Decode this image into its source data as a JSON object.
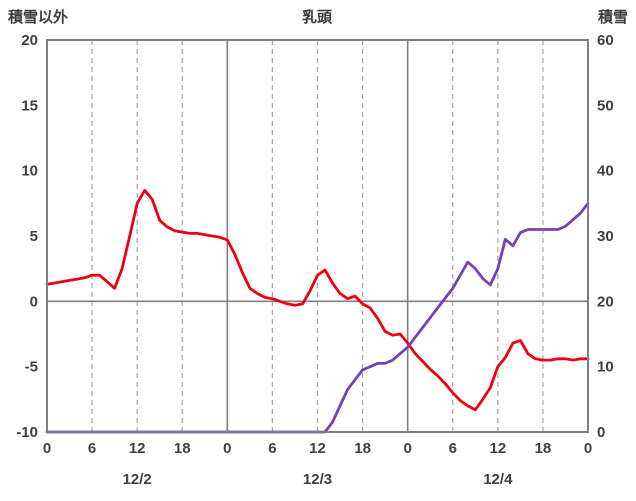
{
  "chart_data": {
    "type": "line",
    "title": "乳頭",
    "x_hours_range": [
      0,
      72
    ],
    "x_tick_hours": [
      0,
      6,
      12,
      18,
      24,
      30,
      36,
      42,
      48,
      54,
      60,
      66,
      72
    ],
    "x_tick_labels": [
      "0",
      "6",
      "12",
      "18",
      "0",
      "6",
      "12",
      "18",
      "0",
      "6",
      "12",
      "18",
      "0"
    ],
    "day_labels": [
      {
        "label": "12/2",
        "center_hour": 12
      },
      {
        "label": "12/3",
        "center_hour": 36
      },
      {
        "label": "12/4",
        "center_hour": 60
      }
    ],
    "left_axis": {
      "title": "積雪以外",
      "min": -10,
      "max": 20,
      "ticks": [
        -10,
        -5,
        0,
        5,
        10,
        15,
        20
      ]
    },
    "right_axis": {
      "title": "積雪",
      "min": 0,
      "max": 60,
      "ticks": [
        0,
        10,
        20,
        30,
        40,
        50,
        60
      ]
    },
    "gridlines": {
      "vertical_dashed_every_hours": 6,
      "vertical_solid_at_hours": [
        24,
        48
      ],
      "horizontal_solid_at_left_value": 0,
      "grid_color": "#a6a6a6",
      "frame_color": "#7f7f7f",
      "text_color": "#404040"
    },
    "series": [
      {
        "name": "積雪以外",
        "dom_name": "left-axis-series-line",
        "axis": "left",
        "color": "#ee0011",
        "x_step_hours": 1,
        "values": [
          1.3,
          1.4,
          1.5,
          1.6,
          1.7,
          1.8,
          2.0,
          2.0,
          1.5,
          1.0,
          2.5,
          5.0,
          7.5,
          8.5,
          7.8,
          6.2,
          5.7,
          5.4,
          5.3,
          5.2,
          5.2,
          5.1,
          5.0,
          4.9,
          4.7,
          3.6,
          2.2,
          1.0,
          0.6,
          0.3,
          0.2,
          0.0,
          -0.2,
          -0.3,
          -0.2,
          0.8,
          2.0,
          2.4,
          1.4,
          0.6,
          0.2,
          0.4,
          -0.2,
          -0.5,
          -1.3,
          -2.3,
          -2.6,
          -2.5,
          -3.2,
          -4.0,
          -4.6,
          -5.2,
          -5.7,
          -6.3,
          -7.0,
          -7.6,
          -8.0,
          -8.3,
          -7.5,
          -6.6,
          -5.0,
          -4.3,
          -3.2,
          -3.0,
          -4.0,
          -4.4,
          -4.5,
          -4.5,
          -4.4,
          -4.4,
          -4.5,
          -4.4,
          -4.4
        ]
      },
      {
        "name": "積雪",
        "dom_name": "right-axis-series-line",
        "axis": "right",
        "color": "#7340bf",
        "x_step_hours": 1,
        "values": [
          0,
          0,
          0,
          0,
          0,
          0,
          0,
          0,
          0,
          0,
          0,
          0,
          0,
          0,
          0,
          0,
          0,
          0,
          0,
          0,
          0,
          0,
          0,
          0,
          0,
          0,
          0,
          0,
          0,
          0,
          0,
          0,
          0,
          0,
          0,
          0,
          0,
          0,
          1.5,
          4,
          6.5,
          8,
          9.5,
          10,
          10.5,
          10.5,
          11,
          12,
          13,
          14.5,
          16,
          17.5,
          19,
          20.5,
          22,
          24,
          26,
          25,
          23.5,
          22.5,
          25,
          29.5,
          28.5,
          30.5,
          31,
          31,
          31,
          31,
          31,
          31.5,
          32.5,
          33.5,
          35
        ]
      }
    ],
    "legend": "none",
    "background": "#ffffff"
  }
}
